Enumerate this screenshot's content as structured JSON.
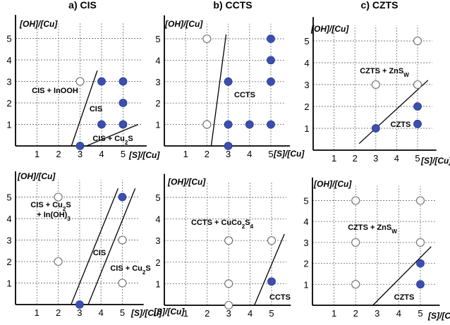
{
  "chart_data": [
    {
      "type": "scatter",
      "title": "a) CIS",
      "ylabel": "[OH]/[Cu]",
      "xlabel": "[S]/[Cu]",
      "xticks": [
        "1",
        "2",
        "3",
        "4",
        "5"
      ],
      "yticks": [
        "1",
        "2",
        "3",
        "4",
        "5"
      ],
      "xlim": [
        0,
        5.9
      ],
      "ylim": [
        0,
        5.7
      ],
      "grid": true,
      "filled_points": [
        {
          "x": 4,
          "y": 3
        },
        {
          "x": 5,
          "y": 3
        },
        {
          "x": 5,
          "y": 2
        },
        {
          "x": 4,
          "y": 1
        },
        {
          "x": 5,
          "y": 1
        },
        {
          "x": 3,
          "y": 0
        }
      ],
      "open_points": [
        {
          "x": 3,
          "y": 3
        }
      ],
      "boundaries": [
        {
          "from": [
            2.6,
            0
          ],
          "to": [
            3.8,
            3.5
          ]
        },
        {
          "from": [
            3.3,
            0
          ],
          "to": [
            5.7,
            1
          ]
        }
      ],
      "region_labels": [
        "CIS + InOOH",
        "CIS",
        "CIS + Cu₂S"
      ]
    },
    {
      "type": "scatter",
      "title": "b) CCTS",
      "ylabel": "[OH]/[Cu]",
      "xlabel": "[S]/[Cu]",
      "xticks": [
        "1",
        "2",
        "3",
        "4",
        "5"
      ],
      "yticks": [
        "1",
        "2",
        "3",
        "4",
        "5"
      ],
      "xlim": [
        0,
        5.7
      ],
      "ylim": [
        0,
        5.7
      ],
      "grid": true,
      "filled_points": [
        {
          "x": 3,
          "y": 3
        },
        {
          "x": 3,
          "y": 1
        },
        {
          "x": 4,
          "y": 1
        },
        {
          "x": 5,
          "y": 1
        },
        {
          "x": 5,
          "y": 3
        },
        {
          "x": 5,
          "y": 4
        },
        {
          "x": 5,
          "y": 5
        },
        {
          "x": 3,
          "y": 0
        }
      ],
      "open_points": [
        {
          "x": 2,
          "y": 5
        },
        {
          "x": 2,
          "y": 1
        }
      ],
      "boundaries": [
        {
          "from": [
            2.2,
            0
          ],
          "to": [
            2.9,
            5.2
          ]
        }
      ],
      "region_labels": [
        "CCTS"
      ]
    },
    {
      "type": "scatter",
      "title": "c) CZTS",
      "ylabel": "[OH]/[Cu]",
      "xlabel": "[S]/[Cu]",
      "xticks": [
        "1",
        "2",
        "3",
        "4",
        "5"
      ],
      "yticks": [
        "1",
        "2",
        "3",
        "4",
        "5"
      ],
      "xlim": [
        0,
        5.7
      ],
      "ylim": [
        0,
        5.7
      ],
      "grid": true,
      "filled_points": [
        {
          "x": 3,
          "y": 1
        },
        {
          "x": 5,
          "y": 2
        },
        {
          "x": 5,
          "y": 1.2
        }
      ],
      "open_points": [
        {
          "x": 5,
          "y": 5
        },
        {
          "x": 3,
          "y": 3
        },
        {
          "x": 5,
          "y": 3
        }
      ],
      "boundaries": [
        {
          "from": [
            2.2,
            0.3
          ],
          "to": [
            5.5,
            3.2
          ]
        }
      ],
      "region_labels": [
        "CZTS + ZnSW",
        "CZTS"
      ]
    },
    {
      "type": "scatter",
      "title": "",
      "ylabel": "[OH]/[Cu]",
      "xlabel": "[S]/[Cu]",
      "xticks": [
        "1",
        "2",
        "3",
        "4",
        "5"
      ],
      "yticks": [
        "1",
        "2",
        "3",
        "4",
        "5"
      ],
      "xlim": [
        0,
        5.8
      ],
      "ylim": [
        0,
        5.8
      ],
      "grid": true,
      "filled_points": [
        {
          "x": 5,
          "y": 5
        },
        {
          "x": 3,
          "y": 0
        }
      ],
      "open_points": [
        {
          "x": 2,
          "y": 5
        },
        {
          "x": 2,
          "y": 2
        },
        {
          "x": 5,
          "y": 3
        },
        {
          "x": 5,
          "y": 1
        }
      ],
      "boundaries": [
        {
          "from": [
            2.6,
            0
          ],
          "to": [
            4.8,
            5.4
          ]
        },
        {
          "from": [
            3.4,
            0
          ],
          "to": [
            5.6,
            5.4
          ]
        }
      ],
      "region_labels": [
        "CIS + Cu₂S + In(OH)₃",
        "CIS",
        "CIS + Cu₂S"
      ]
    },
    {
      "type": "scatter",
      "title": "",
      "ylabel": "[OH]/[Cu]",
      "xlabel": "[S]/[Cu]",
      "xticks": [
        "1",
        "2",
        "3",
        "4",
        "5"
      ],
      "yticks": [
        "1",
        "2",
        "3",
        "4",
        "5"
      ],
      "xlim": [
        0,
        5.7
      ],
      "ylim": [
        0,
        5.7
      ],
      "grid": true,
      "filled_points": [
        {
          "x": 5,
          "y": 1.1
        }
      ],
      "open_points": [
        {
          "x": 3,
          "y": 3
        },
        {
          "x": 5,
          "y": 3
        },
        {
          "x": 3,
          "y": 1
        },
        {
          "x": 3,
          "y": 0
        }
      ],
      "boundaries": [
        {
          "from": [
            4.2,
            0
          ],
          "to": [
            5.6,
            3.3
          ]
        }
      ],
      "region_labels": [
        "CCTS + CuCo₂S₄",
        "CCTS"
      ]
    },
    {
      "type": "scatter",
      "title": "",
      "ylabel": "[OH]/[Cu]",
      "xlabel": "[S]/[Cu]",
      "xticks": [
        "1",
        "2",
        "3",
        "4",
        "5"
      ],
      "yticks": [
        "1",
        "2",
        "3",
        "4",
        "5"
      ],
      "xlim": [
        0,
        5.7
      ],
      "ylim": [
        0,
        5.7
      ],
      "grid": true,
      "filled_points": [
        {
          "x": 5,
          "y": 2
        },
        {
          "x": 5,
          "y": 1
        }
      ],
      "open_points": [
        {
          "x": 5,
          "y": 5
        },
        {
          "x": 2,
          "y": 5
        },
        {
          "x": 2,
          "y": 3
        },
        {
          "x": 5,
          "y": 3
        },
        {
          "x": 2,
          "y": 1
        }
      ],
      "boundaries": [
        {
          "from": [
            2.8,
            0
          ],
          "to": [
            5.5,
            2.8
          ]
        }
      ],
      "region_labels": [
        "CZTS + ZnSW",
        "CZTS"
      ]
    }
  ]
}
